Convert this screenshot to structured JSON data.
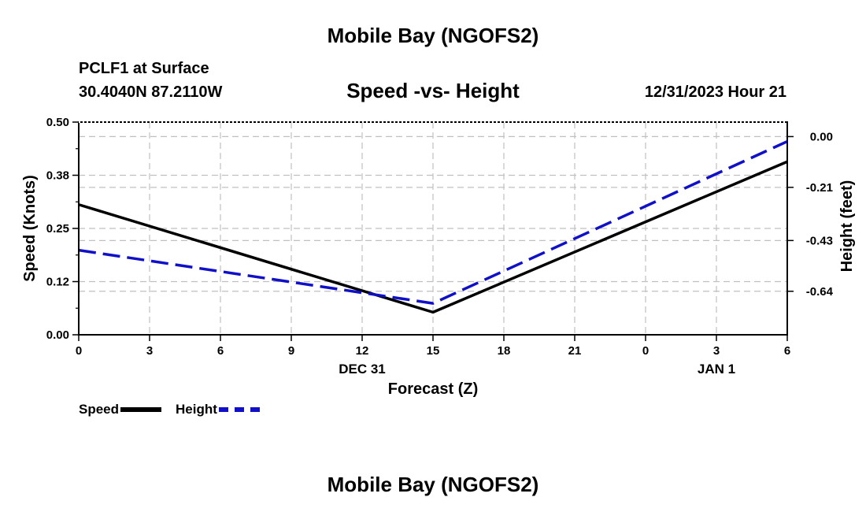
{
  "header": {
    "title": "Mobile Bay (NGOFS2)",
    "station": "PCLF1 at Surface",
    "coords": "30.4040N  87.2110W",
    "chart_title": "Speed -vs- Height",
    "datetime": "12/31/2023 Hour 21"
  },
  "footer": {
    "title": "Mobile Bay (NGOFS2)"
  },
  "legend": {
    "speed_label": "Speed",
    "height_label": "Height"
  },
  "colors": {
    "speed": "#000000",
    "height": "#1010c8",
    "grid": "#c0c0c0"
  },
  "chart_data": {
    "type": "line",
    "title": "Speed -vs- Height",
    "xlabel": "Forecast (Z)",
    "ylabel": "Speed (Knots)",
    "y2label": "Height (feet)",
    "x": [
      0,
      15,
      30
    ],
    "x_tick_labels": [
      "0",
      "3",
      "6",
      "9",
      "12",
      "15",
      "18",
      "21",
      "0",
      "3",
      "6"
    ],
    "x_date_labels": [
      {
        "label": "DEC 31",
        "at": 12
      },
      {
        "label": "JAN 1",
        "at": 27
      }
    ],
    "ylim": [
      0,
      0.5
    ],
    "y_ticks": [
      "0.00",
      "0.12",
      "0.25",
      "0.38",
      "0.50"
    ],
    "y2lim": [
      -0.82,
      0.06
    ],
    "y2_ticks": [
      "0.00",
      "-0.21",
      "-0.43",
      "-0.64"
    ],
    "y2_tick_values": [
      0.0,
      -0.21,
      -0.43,
      -0.64
    ],
    "series": [
      {
        "name": "Speed",
        "axis": "left",
        "style": "solid",
        "values": [
          0.306,
          0.053,
          0.407
        ]
      },
      {
        "name": "Height",
        "axis": "right",
        "style": "dashed",
        "values": [
          -0.47,
          -0.69,
          -0.02
        ]
      }
    ],
    "grid": true,
    "legend_position": "bottom-left"
  }
}
